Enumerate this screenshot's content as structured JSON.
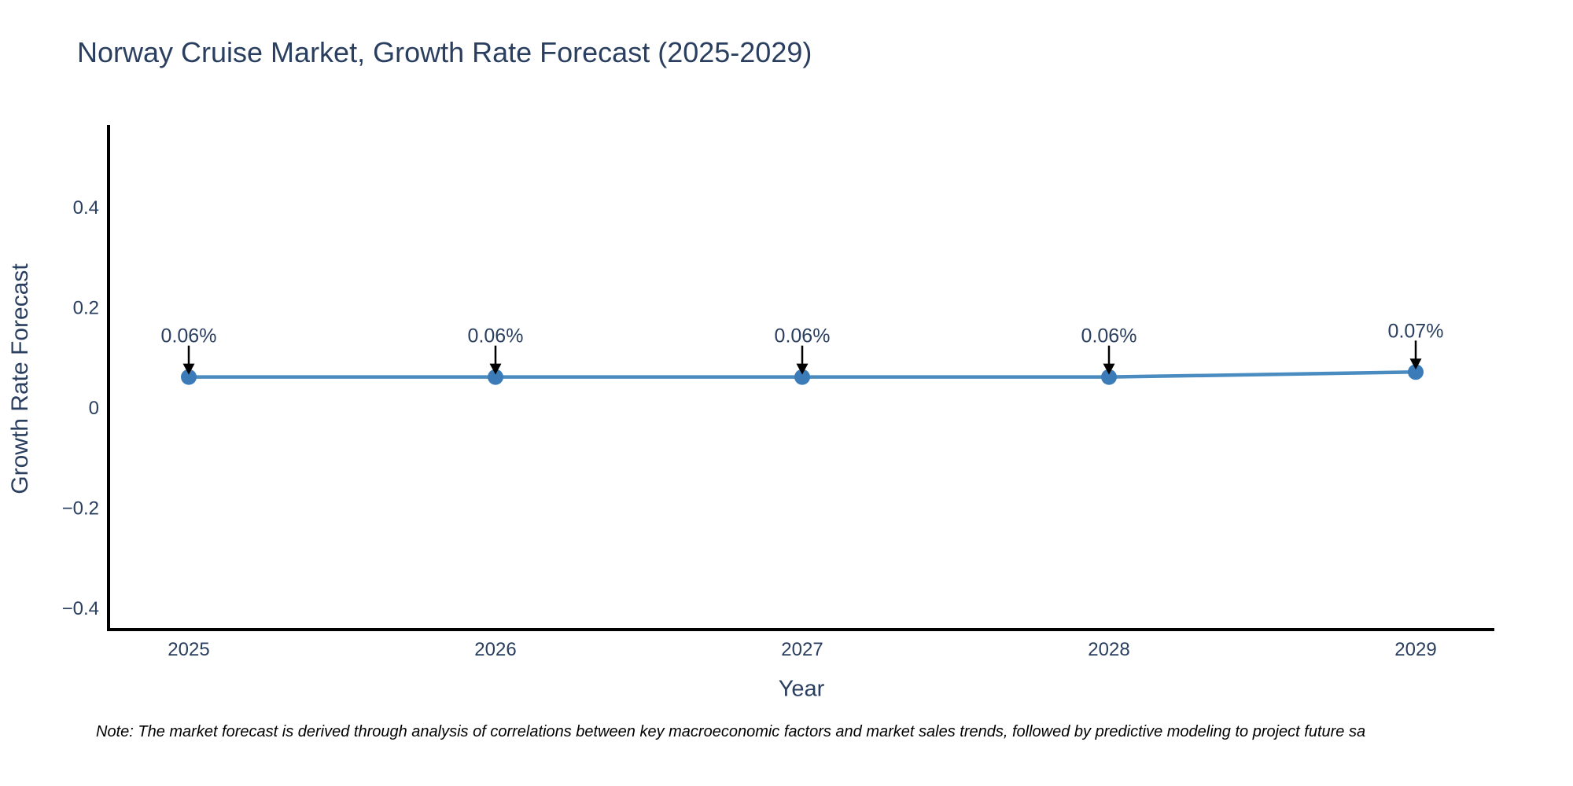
{
  "note": "Note: The market forecast is derived through analysis of correlations between key macroeconomic factors and market sales trends, followed by predictive modeling to project future sa",
  "chart_data": {
    "type": "line",
    "title": "Norway Cruise Market, Growth Rate Forecast (2025-2029)",
    "xlabel": "Year",
    "ylabel": "Growth Rate Forecast",
    "x": [
      "2025",
      "2026",
      "2027",
      "2028",
      "2029"
    ],
    "series": [
      {
        "name": "Growth Rate Forecast",
        "values": [
          0.06,
          0.06,
          0.06,
          0.06,
          0.07
        ]
      }
    ],
    "point_labels": [
      "0.06%",
      "0.06%",
      "0.06%",
      "0.06%",
      "0.07%"
    ],
    "ylim": [
      -0.444,
      0.563
    ],
    "yticks": [
      0.4,
      0.2,
      0,
      -0.2,
      -0.4
    ],
    "ytick_labels": [
      "0.4",
      "0.2",
      "0",
      "−0.2",
      "−0.4"
    ],
    "grid": false,
    "legend": "none",
    "annotation_style": "value-label-with-down-arrow",
    "colors": {
      "line": "#4a8bc0",
      "marker": "#3b7cb8",
      "axis": "#000000",
      "text": "#2a3f5f",
      "arrow": "#000000",
      "note": "#000000",
      "background": "#ffffff"
    }
  }
}
